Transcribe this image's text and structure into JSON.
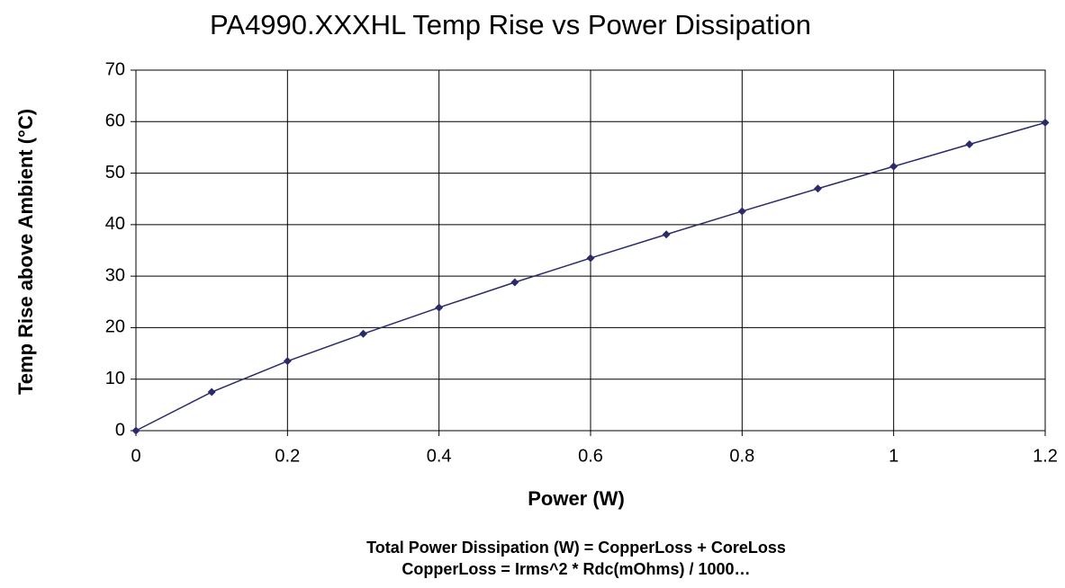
{
  "chart_data": {
    "type": "line",
    "title": "PA4990.XXXHL Temp Rise vs Power Dissipation",
    "x_label": "Power (W)",
    "y_label": "Temp Rise above Ambient (°C)",
    "annotations": [
      "Total Power Dissipation (W) = CopperLoss + CoreLoss",
      "CopperLoss = Irms^2 * Rdc(mOhms) / 1000…"
    ],
    "x": [
      0,
      0.1,
      0.2,
      0.3,
      0.4,
      0.5,
      0.6,
      0.7,
      0.8,
      0.9,
      1,
      1.1,
      1.2
    ],
    "series": [
      {
        "color": "#2b2b6b",
        "values": [
          0,
          7.5,
          13.5,
          18.8,
          23.9,
          28.8,
          33.5,
          38.1,
          42.6,
          47.0,
          51.3,
          55.6,
          59.8
        ]
      }
    ],
    "xlim": [
      0,
      1.2
    ],
    "xticks": [
      0,
      0.2,
      0.4,
      0.6,
      0.8,
      1,
      1.2
    ],
    "ylim": [
      0,
      70
    ],
    "yticks": [
      0,
      10,
      20,
      30,
      40,
      50,
      60,
      70
    ],
    "grid": true
  }
}
